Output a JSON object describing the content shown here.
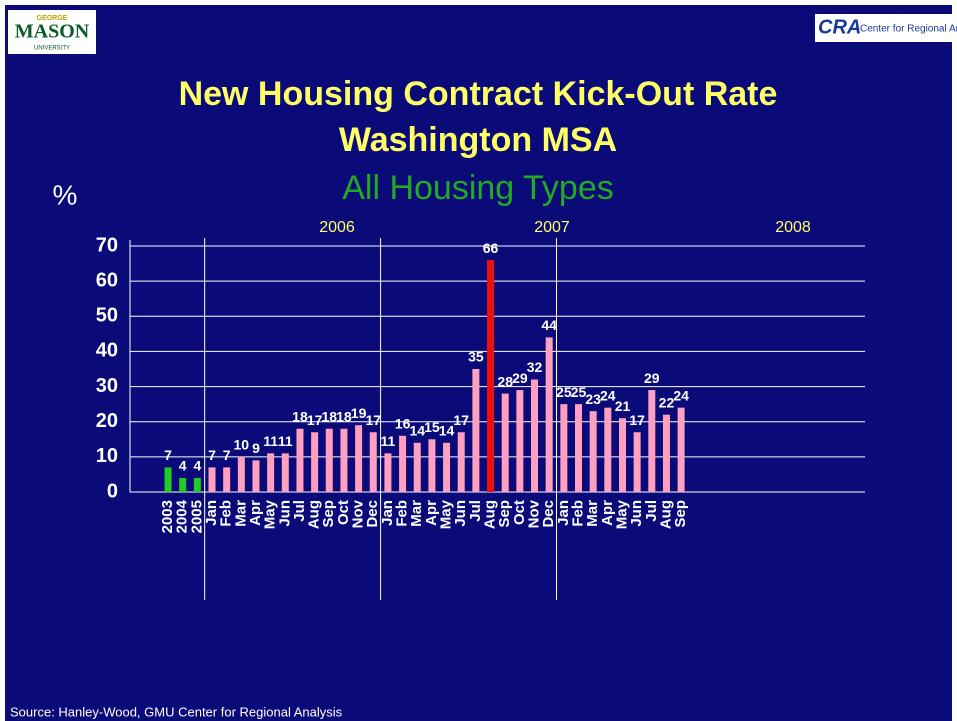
{
  "chart_data": {
    "type": "bar",
    "title_lines": [
      "New Housing Contract Kick-Out Rate",
      "Washington MSA"
    ],
    "subtitle": "All Housing Types",
    "y_label": "%",
    "group_labels": [
      "2006",
      "2007",
      "2008"
    ],
    "categories": [
      "2003",
      "2004",
      "2005",
      "Jan",
      "Feb",
      "Mar",
      "Apr",
      "May",
      "Jun",
      "Jul",
      "Aug",
      "Sep",
      "Oct",
      "Nov",
      "Dec",
      "Jan",
      "Feb",
      "Mar",
      "Apr",
      "May",
      "Jun",
      "Jul",
      "Aug",
      "Sep",
      "Oct",
      "Nov",
      "Dec",
      "Jan",
      "Feb",
      "Mar",
      "Apr",
      "May",
      "Jun",
      "Jul",
      "Aug",
      "Sep"
    ],
    "values": [
      7,
      4,
      4,
      7,
      7,
      10,
      9,
      11,
      11,
      18,
      17,
      18,
      18,
      19,
      17,
      11,
      16,
      14,
      15,
      14,
      17,
      35,
      66,
      28,
      29,
      32,
      44,
      25,
      25,
      23,
      24,
      21,
      17,
      29,
      22,
      24
    ],
    "colors": [
      "#22cc22",
      "#22cc22",
      "#22cc22",
      "#ffa0c0",
      "#ffa0c0",
      "#ffa0c0",
      "#ffa0c0",
      "#ffa0c0",
      "#ffa0c0",
      "#ffa0c0",
      "#ffa0c0",
      "#ffa0c0",
      "#ffa0c0",
      "#ffa0c0",
      "#ffa0c0",
      "#ffa0c0",
      "#ffa0c0",
      "#ffa0c0",
      "#ffa0c0",
      "#ffa0c0",
      "#ffa0c0",
      "#ffa0c0",
      "#ee1111",
      "#ffa0c0",
      "#ffa0c0",
      "#ffa0c0",
      "#ffa0c0",
      "#ffa0c0",
      "#ffa0c0",
      "#ffa0c0",
      "#ffa0c0",
      "#ffa0c0",
      "#ffa0c0",
      "#ffa0c0",
      "#ffa0c0",
      "#ffa0c0"
    ],
    "ylim": [
      0,
      70
    ],
    "yticks": [
      0,
      10,
      20,
      30,
      40,
      50,
      60,
      70
    ],
    "grid": true
  },
  "source": "Source: Hanley-Wood, GMU Center for Regional Analysis",
  "logos": {
    "left": [
      "GEORGE",
      "MASON",
      "UNIVERSITY"
    ],
    "right": [
      "CRA",
      "Center for Regional Analysis"
    ]
  }
}
